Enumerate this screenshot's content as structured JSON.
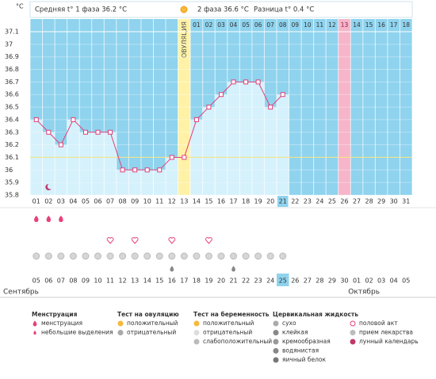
{
  "chart_data": {
    "type": "line",
    "y_unit": "°C",
    "header": {
      "phase1": "Средняя t° 1 фаза 36.2 °C",
      "phase2": "2 фаза 36.6 °C",
      "difference": "Разница t° 0.4 °C"
    },
    "ylim": [
      35.8,
      37.1
    ],
    "yticks": [
      35.8,
      35.9,
      36,
      36.1,
      36.2,
      36.3,
      36.4,
      36.5,
      36.6,
      36.7,
      36.8,
      36.9,
      37,
      37.1
    ],
    "categories": [
      "01",
      "02",
      "03",
      "04",
      "05",
      "06",
      "07",
      "08",
      "09",
      "10",
      "11",
      "12",
      "13",
      "14",
      "15",
      "16",
      "17",
      "18",
      "19",
      "20",
      "21",
      "22",
      "23",
      "24",
      "25",
      "26",
      "27",
      "28",
      "29",
      "30",
      "31"
    ],
    "values": [
      36.4,
      36.3,
      36.2,
      36.4,
      36.3,
      36.3,
      36.3,
      36.0,
      36.0,
      36.0,
      36.0,
      36.1,
      36.1,
      36.4,
      36.5,
      36.6,
      36.7,
      36.7,
      36.7,
      36.5,
      36.6,
      null,
      null,
      null,
      null,
      null,
      null,
      null,
      null,
      null,
      null
    ],
    "color": "#e0407a",
    "coverline": 36.1,
    "ovulation_day": "13",
    "ovulation_label": "ОВУЛЯЦИЯ",
    "highlight_day": "26",
    "current_day": "21",
    "phase2_days": [
      "01",
      "02",
      "03",
      "04",
      "05",
      "06",
      "07",
      "08",
      "09",
      "10",
      "11",
      "12",
      "13",
      "14",
      "15",
      "16",
      "17",
      "18"
    ],
    "lunar_days": [
      "02"
    ],
    "menstruation_days": [
      "01",
      "02",
      "03"
    ],
    "intercourse_days": [
      "07",
      "09",
      "12",
      "15"
    ],
    "test_days": [
      "01",
      "02",
      "03",
      "04",
      "05",
      "06",
      "07",
      "08",
      "09",
      "10",
      "11",
      "12",
      "13",
      "14",
      "15",
      "16",
      "17",
      "18",
      "19",
      "20",
      "21"
    ],
    "egg_white_days": [
      "12",
      "17"
    ],
    "dates": [
      "05",
      "06",
      "07",
      "08",
      "09",
      "10",
      "11",
      "12",
      "13",
      "14",
      "15",
      "16",
      "17",
      "18",
      "19",
      "20",
      "21",
      "22",
      "23",
      "24",
      "25",
      "26",
      "27",
      "28",
      "29",
      "30",
      "01",
      "02",
      "03",
      "04",
      "05"
    ],
    "red_dates": [
      "11",
      "17",
      "24",
      "01",
      "02"
    ],
    "today_date": "25",
    "months": [
      "Сентябрь",
      "Октябрь"
    ]
  },
  "legend": [
    {
      "title": "Менструация",
      "items": [
        "менструация",
        "небольшие выделения"
      ]
    },
    {
      "title": "Тест на овуляцию",
      "items": [
        "положительный",
        "отрицательный"
      ]
    },
    {
      "title": "Тест на беременность",
      "items": [
        "положительный",
        "отрицательный",
        "слабоположительный"
      ]
    },
    {
      "title": "Цервикальная жидкость",
      "items": [
        "сухо",
        "клейкая",
        "кремообразная",
        "водянистая",
        "яичный белок"
      ]
    },
    {
      "title": "",
      "items": [
        "половой акт",
        "прием лекарства",
        "лунный календарь"
      ]
    }
  ]
}
